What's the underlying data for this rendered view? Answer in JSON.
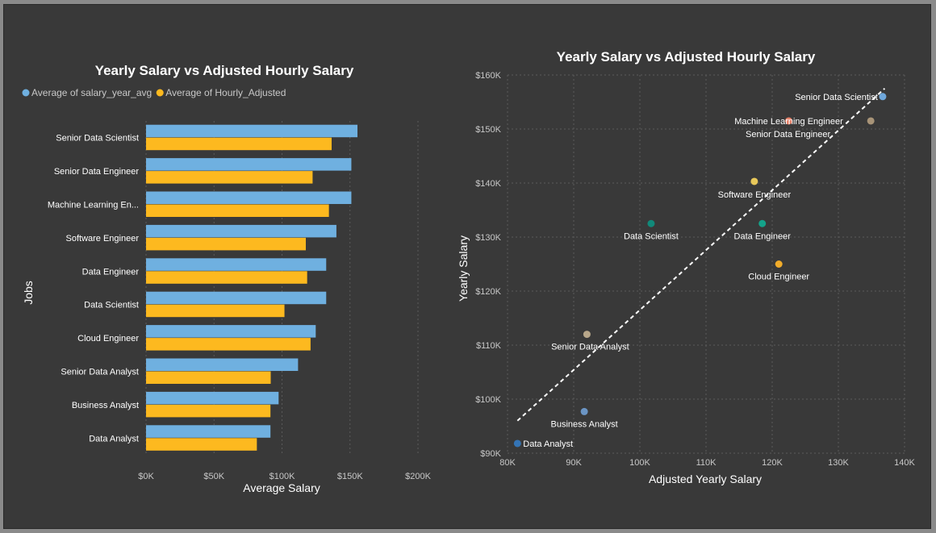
{
  "chart_data": [
    {
      "type": "bar",
      "orientation": "horizontal",
      "title": "Yearly Salary vs Adjusted Hourly Salary",
      "xlabel": "Average Salary",
      "ylabel": "Jobs",
      "xlim": [
        0,
        200000
      ],
      "xticks": [
        {
          "value": 0,
          "label": "$0K"
        },
        {
          "value": 50000,
          "label": "$50K"
        },
        {
          "value": 100000,
          "label": "$100K"
        },
        {
          "value": 150000,
          "label": "$150K"
        },
        {
          "value": 200000,
          "label": "$200K"
        }
      ],
      "grid": true,
      "legend": "top-left",
      "categories": [
        "Senior Data Scientist",
        "Senior Data Engineer",
        "Machine Learning En...",
        "Software Engineer",
        "Data Engineer",
        "Data Scientist",
        "Cloud Engineer",
        "Senior Data Analyst",
        "Business Analyst",
        "Data Analyst"
      ],
      "series": [
        {
          "name": "Average of salary_year_avg",
          "color": "#6fb0e0",
          "values": [
            155500,
            151000,
            151000,
            140000,
            132500,
            132500,
            124800,
            111800,
            97500,
            91500
          ]
        },
        {
          "name": "Average of Hourly_Adjusted",
          "color": "#fdb91f",
          "values": [
            136500,
            122500,
            134500,
            117500,
            118500,
            101800,
            121000,
            91700,
            91500,
            81500
          ]
        }
      ]
    },
    {
      "type": "scatter",
      "title": "Yearly Salary vs Adjusted Hourly Salary",
      "xlabel": "Adjusted Yearly Salary",
      "ylabel": "Yearly Salary",
      "xlim": [
        80000,
        140000
      ],
      "ylim": [
        90000,
        160000
      ],
      "xticks": [
        {
          "value": 80000,
          "label": "80K"
        },
        {
          "value": 90000,
          "label": "90K"
        },
        {
          "value": 100000,
          "label": "100K"
        },
        {
          "value": 110000,
          "label": "110K"
        },
        {
          "value": 120000,
          "label": "120K"
        },
        {
          "value": 130000,
          "label": "130K"
        },
        {
          "value": 140000,
          "label": "140K"
        }
      ],
      "yticks": [
        {
          "value": 90000,
          "label": "$90K"
        },
        {
          "value": 100000,
          "label": "$100K"
        },
        {
          "value": 110000,
          "label": "$110K"
        },
        {
          "value": 120000,
          "label": "$120K"
        },
        {
          "value": 130000,
          "label": "$130K"
        },
        {
          "value": 140000,
          "label": "$140K"
        },
        {
          "value": 150000,
          "label": "$150K"
        },
        {
          "value": 160000,
          "label": "$160K"
        }
      ],
      "grid": true,
      "trendline": {
        "x": [
          81500,
          137000
        ],
        "y": [
          96000,
          157500
        ]
      },
      "points": [
        {
          "label": "Senior Data Scientist",
          "x": 136700,
          "y": 156000,
          "color": "#6fa8dc",
          "anchor": "end",
          "ldx": -6,
          "ldy": 0
        },
        {
          "label": "Machine Learning Engineer",
          "x": 122500,
          "y": 151500,
          "color": "#e8836b",
          "anchor": "middle",
          "ldx": 0,
          "ldy": 0
        },
        {
          "label": "Senior Data Engineer",
          "x": 134900,
          "y": 151500,
          "color": "#a89478",
          "anchor": "end",
          "ldx": -50,
          "ldy": 16
        },
        {
          "label": "Software Engineer",
          "x": 117300,
          "y": 140300,
          "color": "#e8c85a",
          "anchor": "middle",
          "ldx": 0,
          "ldy": 16
        },
        {
          "label": "Data Scientist",
          "x": 101700,
          "y": 132500,
          "color": "#11897a",
          "anchor": "middle",
          "ldx": 0,
          "ldy": 15
        },
        {
          "label": "Data Engineer",
          "x": 118500,
          "y": 132500,
          "color": "#14a38a",
          "anchor": "middle",
          "ldx": 0,
          "ldy": 15
        },
        {
          "label": "Cloud Engineer",
          "x": 121000,
          "y": 125000,
          "color": "#f1ac2a",
          "anchor": "middle",
          "ldx": 0,
          "ldy": 15
        },
        {
          "label": "Senior Data Analyst",
          "x": 92000,
          "y": 112000,
          "color": "#b8a78a",
          "anchor": "middle",
          "ldx": 4,
          "ldy": 15
        },
        {
          "label": "Business Analyst",
          "x": 91600,
          "y": 97700,
          "color": "#6b95c4",
          "anchor": "middle",
          "ldx": 0,
          "ldy": 15
        },
        {
          "label": "Data Analyst",
          "x": 81500,
          "y": 91800,
          "color": "#3474b5",
          "anchor": "start",
          "ldx": 7,
          "ldy": 0
        }
      ]
    }
  ]
}
